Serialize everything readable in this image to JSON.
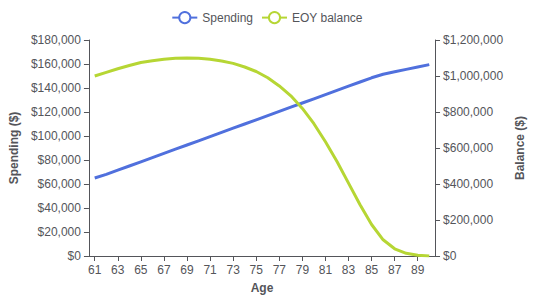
{
  "chart_data": {
    "type": "line",
    "xlabel": "Age",
    "ylabel": "Spending ($)",
    "y2label": "Balance ($)",
    "x": [
      61,
      62,
      63,
      64,
      65,
      66,
      67,
      68,
      69,
      70,
      71,
      72,
      73,
      74,
      75,
      76,
      77,
      78,
      79,
      80,
      81,
      82,
      83,
      84,
      85,
      86,
      87,
      88,
      89,
      90
    ],
    "xlim": [
      60.5,
      90.5
    ],
    "xticks": [
      61,
      63,
      65,
      67,
      69,
      71,
      73,
      75,
      77,
      79,
      81,
      83,
      85,
      87,
      89
    ],
    "ylim": [
      0,
      180000
    ],
    "yticks": [
      {
        "value": 0,
        "label": "$0"
      },
      {
        "value": 20000,
        "label": "$20,000"
      },
      {
        "value": 40000,
        "label": "$40,000"
      },
      {
        "value": 60000,
        "label": "$60,000"
      },
      {
        "value": 80000,
        "label": "$80,000"
      },
      {
        "value": 100000,
        "label": "$100,000"
      },
      {
        "value": 120000,
        "label": "$120,000"
      },
      {
        "value": 140000,
        "label": "$140,000"
      },
      {
        "value": 160000,
        "label": "$160,000"
      },
      {
        "value": 180000,
        "label": "$180,000"
      }
    ],
    "y2lim": [
      0,
      1200000
    ],
    "y2ticks": [
      {
        "value": 0,
        "label": "$0"
      },
      {
        "value": 200000,
        "label": "$200,000"
      },
      {
        "value": 400000,
        "label": "$400,000"
      },
      {
        "value": 600000,
        "label": "$600,000"
      },
      {
        "value": 800000,
        "label": "$800,000"
      },
      {
        "value": 1000000,
        "label": "$1,000,000"
      },
      {
        "value": 1200000,
        "label": "$1,200,000"
      }
    ],
    "grid": false,
    "legend": "top",
    "series": [
      {
        "name": "Spending",
        "values": [
          65000,
          68000,
          71500,
          75000,
          78500,
          82000,
          85500,
          89000,
          92500,
          96000,
          99500,
          103000,
          106500,
          110000,
          113500,
          117000,
          120500,
          124000,
          127500,
          131000,
          134500,
          138000,
          141500,
          145000,
          148500,
          151500,
          153500,
          155500,
          157500,
          159500
        ]
      },
      {
        "name": "EOY balance",
        "axis": "y2",
        "values": [
          1000000,
          1020000,
          1040000,
          1058000,
          1075000,
          1085000,
          1093000,
          1098000,
          1100000,
          1098000,
          1093000,
          1083000,
          1070000,
          1050000,
          1025000,
          990000,
          945000,
          890000,
          820000,
          735000,
          635000,
          525000,
          405000,
          285000,
          175000,
          90000,
          40000,
          15000,
          4000,
          0
        ]
      }
    ]
  }
}
